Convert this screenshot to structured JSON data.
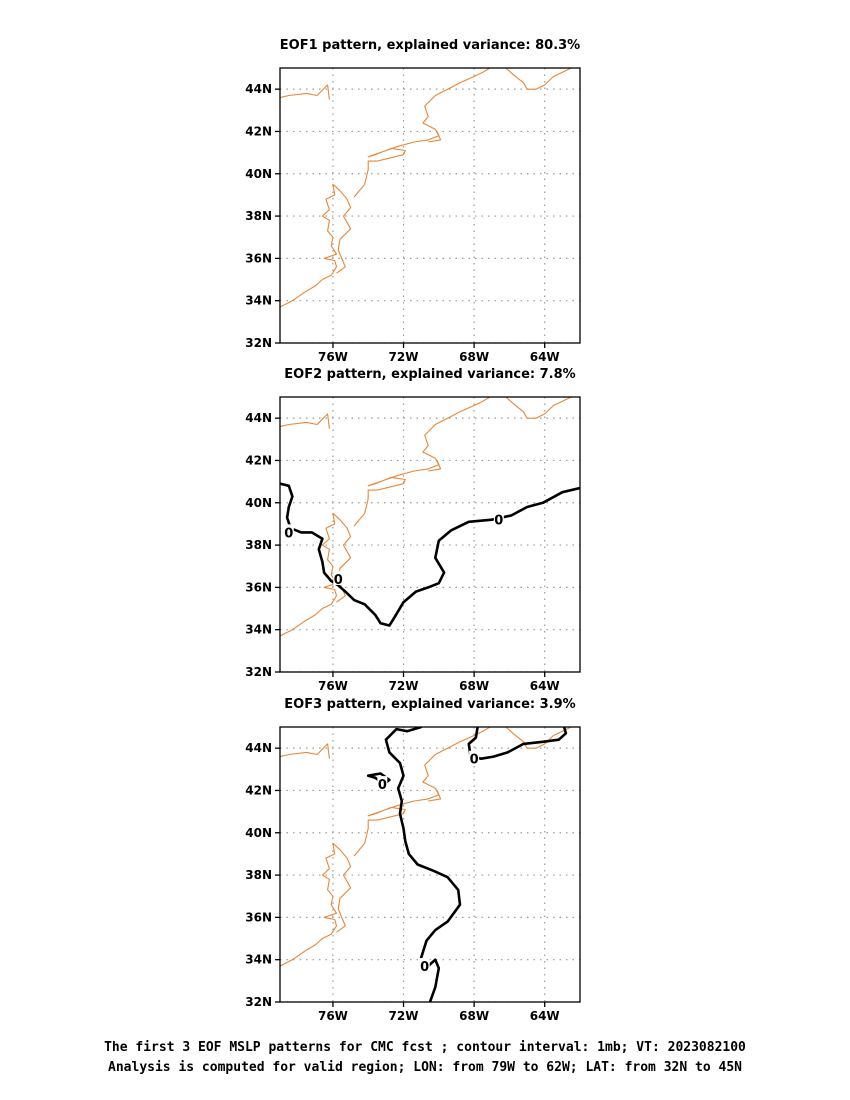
{
  "chart_data": [
    {
      "type": "contour-map",
      "title": "EOF1 pattern, explained variance: 80.3%",
      "xlim": [
        -79,
        -62
      ],
      "ylim": [
        32,
        45
      ],
      "x_ticks": [
        "76W",
        "72W",
        "68W",
        "64W"
      ],
      "y_ticks": [
        "32N",
        "34N",
        "36N",
        "38N",
        "40N",
        "42N",
        "44N"
      ],
      "grid": true,
      "contours": []
    },
    {
      "type": "contour-map",
      "title": "EOF2 pattern, explained variance: 7.8%",
      "xlim": [
        -79,
        -62
      ],
      "ylim": [
        32,
        45
      ],
      "x_ticks": [
        "76W",
        "72W",
        "68W",
        "64W"
      ],
      "y_ticks": [
        "32N",
        "34N",
        "36N",
        "38N",
        "40N",
        "42N",
        "44N"
      ],
      "grid": true,
      "contours": [
        {
          "level": "0",
          "points": [
            [
              -79.0,
              40.9
            ],
            [
              -78.5,
              40.8
            ],
            [
              -78.3,
              40.3
            ],
            [
              -78.5,
              39.8
            ],
            [
              -78.6,
              39.3
            ],
            [
              -78.4,
              38.8
            ],
            [
              -77.8,
              38.6
            ],
            [
              -77.2,
              38.6
            ],
            [
              -76.6,
              38.3
            ],
            [
              -76.8,
              37.8
            ],
            [
              -76.6,
              37.2
            ],
            [
              -76.5,
              36.7
            ],
            [
              -76.1,
              36.3
            ],
            [
              -75.7,
              36.1
            ],
            [
              -75.3,
              35.8
            ],
            [
              -74.8,
              35.4
            ],
            [
              -74.2,
              35.2
            ],
            [
              -73.6,
              34.7
            ],
            [
              -73.3,
              34.3
            ],
            [
              -72.8,
              34.2
            ],
            [
              -72.5,
              34.6
            ],
            [
              -72.0,
              35.3
            ],
            [
              -71.3,
              35.8
            ],
            [
              -70.6,
              36.0
            ],
            [
              -70.0,
              36.2
            ],
            [
              -69.7,
              36.7
            ],
            [
              -70.2,
              37.4
            ],
            [
              -70.0,
              38.2
            ],
            [
              -69.3,
              38.7
            ],
            [
              -68.3,
              39.1
            ],
            [
              -67.0,
              39.2
            ],
            [
              -65.9,
              39.4
            ],
            [
              -65.0,
              39.8
            ],
            [
              -64.1,
              40.0
            ],
            [
              -63.0,
              40.5
            ],
            [
              -62.0,
              40.7
            ]
          ],
          "labels": [
            [
              -78.5,
              38.6
            ],
            [
              -75.7,
              36.4
            ],
            [
              -66.6,
              39.2
            ]
          ]
        }
      ]
    },
    {
      "type": "contour-map",
      "title": "EOF3 pattern, explained variance: 3.9%",
      "xlim": [
        -79,
        -62
      ],
      "ylim": [
        32,
        45
      ],
      "x_ticks": [
        "76W",
        "72W",
        "68W",
        "64W"
      ],
      "y_ticks": [
        "32N",
        "34N",
        "36N",
        "38N",
        "40N",
        "42N",
        "44N"
      ],
      "grid": true,
      "contours": [
        {
          "level": "0",
          "points": [
            [
              -71.0,
              45.0
            ],
            [
              -71.8,
              44.8
            ],
            [
              -72.4,
              44.9
            ],
            [
              -73.0,
              44.4
            ],
            [
              -72.8,
              43.8
            ],
            [
              -72.2,
              43.3
            ],
            [
              -72.0,
              42.7
            ],
            [
              -72.3,
              42.1
            ],
            [
              -72.1,
              41.5
            ],
            [
              -72.2,
              40.9
            ],
            [
              -72.0,
              40.2
            ],
            [
              -71.9,
              39.6
            ],
            [
              -71.7,
              39.0
            ],
            [
              -71.2,
              38.5
            ],
            [
              -70.3,
              38.2
            ],
            [
              -69.5,
              37.9
            ],
            [
              -68.9,
              37.3
            ],
            [
              -68.8,
              36.6
            ],
            [
              -69.5,
              35.8
            ],
            [
              -70.2,
              35.4
            ],
            [
              -70.7,
              34.9
            ],
            [
              -71.0,
              34.1
            ]
          ],
          "labels": []
        },
        {
          "level": "0",
          "points": [
            [
              -67.8,
              45.0
            ],
            [
              -67.9,
              44.5
            ],
            [
              -68.3,
              44.2
            ],
            [
              -68.2,
              43.6
            ],
            [
              -67.6,
              43.5
            ],
            [
              -66.9,
              43.6
            ],
            [
              -66.1,
              43.8
            ],
            [
              -65.2,
              44.2
            ],
            [
              -64.1,
              44.3
            ],
            [
              -63.2,
              44.4
            ],
            [
              -62.8,
              44.7
            ],
            [
              -62.9,
              45.0
            ]
          ],
          "labels": [
            [
              -68.0,
              43.5
            ]
          ]
        },
        {
          "level": "0",
          "points": [
            [
              -74.0,
              42.7
            ],
            [
              -73.3,
              42.8
            ],
            [
              -72.8,
              42.5
            ],
            [
              -73.1,
              42.3
            ],
            [
              -73.6,
              42.6
            ],
            [
              -74.0,
              42.7
            ]
          ],
          "labels": [
            [
              -73.2,
              42.3
            ]
          ]
        },
        {
          "level": "0",
          "points": [
            [
              -70.5,
              32.0
            ],
            [
              -70.2,
              32.7
            ],
            [
              -70.0,
              33.6
            ],
            [
              -70.2,
              34.0
            ],
            [
              -70.6,
              33.7
            ],
            [
              -70.9,
              33.9
            ]
          ],
          "labels": [
            [
              -70.8,
              33.7
            ]
          ]
        }
      ]
    }
  ],
  "caption": {
    "line1": "The first 3 EOF MSLP patterns for CMC fcst ; contour interval: 1mb; VT: 2023082100",
    "line2": "Analysis is computed for valid region; LON: from 79W to 62W; LAT: from 32N to 45N"
  },
  "colors": {
    "coastline": "#e8873a",
    "contour": "#000000",
    "grid": "#9a9a9a"
  }
}
